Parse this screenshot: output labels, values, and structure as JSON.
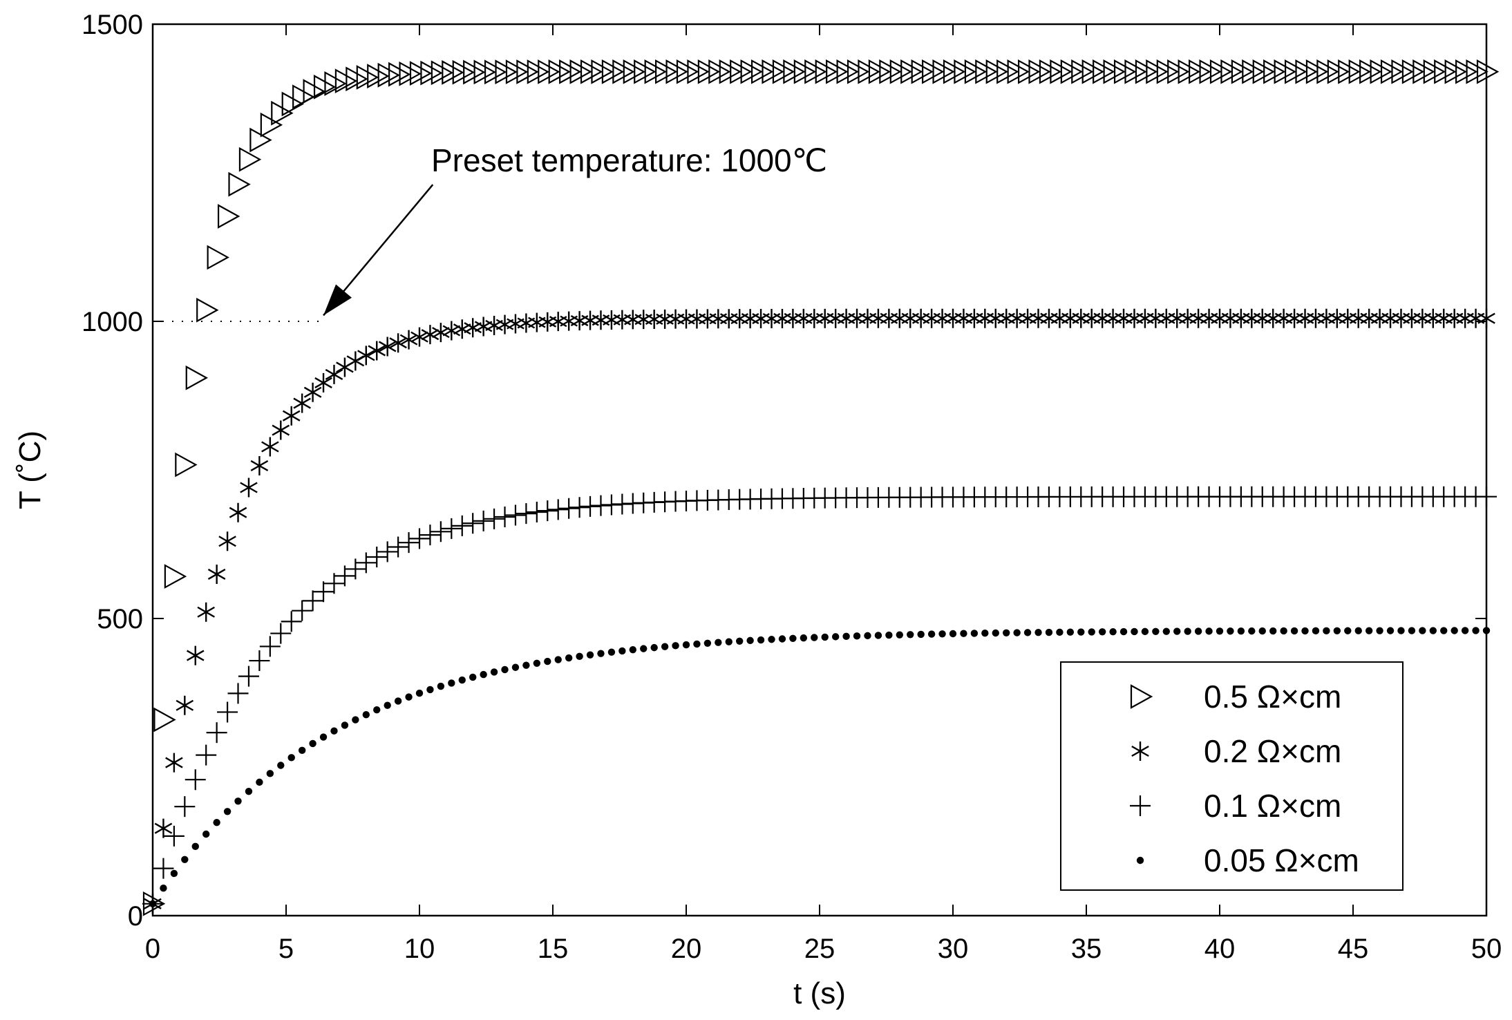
{
  "chart_data": {
    "type": "scatter",
    "title": "",
    "xlabel": "t  (s)",
    "ylabel": "T (˚C)",
    "xlim": [
      0,
      50
    ],
    "ylim": [
      0,
      1500
    ],
    "xticks": [
      0,
      5,
      10,
      15,
      20,
      25,
      30,
      35,
      40,
      45,
      50
    ],
    "yticks": [
      0,
      500,
      1000,
      1500
    ],
    "grid": false,
    "legend_position": "bottom-right",
    "sampling": {
      "t_start": 0,
      "t_end": 50,
      "step": 0.4
    },
    "series": [
      {
        "name": "0.5  Ω×cm",
        "marker": "triangle-right",
        "T0": 20,
        "T_final": 1420,
        "time_constant_s": 1.6
      },
      {
        "name": "0.2  Ω×cm",
        "marker": "asterisk",
        "T0": 20,
        "T_final": 1005,
        "time_constant_s": 2.9
      },
      {
        "name": "0.1  Ω×cm",
        "marker": "plus",
        "T0": 20,
        "T_final": 705,
        "time_constant_s": 4.4
      },
      {
        "name": "0.05  Ω×cm",
        "marker": "dot",
        "T0": 20,
        "T_final": 480,
        "time_constant_s": 6.8
      }
    ],
    "reference_line": {
      "y": 1000,
      "style": "dotted",
      "x_range": [
        0,
        6.5
      ]
    },
    "annotation": {
      "text": "Preset temperature: 1000℃",
      "arrow_from": [
        10.5,
        1230
      ],
      "arrow_to": [
        6.4,
        1010
      ]
    }
  }
}
